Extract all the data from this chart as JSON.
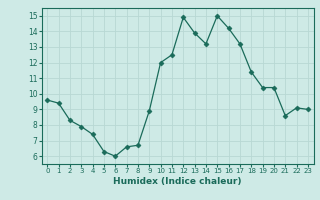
{
  "x": [
    0,
    1,
    2,
    3,
    4,
    5,
    6,
    7,
    8,
    9,
    10,
    11,
    12,
    13,
    14,
    15,
    16,
    17,
    18,
    19,
    20,
    21,
    22,
    23
  ],
  "y": [
    9.6,
    9.4,
    8.3,
    7.9,
    7.4,
    6.3,
    6.0,
    6.6,
    6.7,
    8.9,
    12.0,
    12.5,
    14.9,
    13.9,
    13.2,
    15.0,
    14.2,
    13.2,
    11.4,
    10.4,
    10.4,
    8.6,
    9.1,
    9.0
  ],
  "line_color": "#1a6b5a",
  "marker": "D",
  "marker_size": 2.5,
  "bg_color": "#ceeae6",
  "grid_color": "#b8d8d4",
  "tick_color": "#1a6b5a",
  "xlabel": "Humidex (Indice chaleur)",
  "xlim": [
    -0.5,
    23.5
  ],
  "ylim": [
    5.5,
    15.5
  ],
  "yticks": [
    6,
    7,
    8,
    9,
    10,
    11,
    12,
    13,
    14,
    15
  ],
  "xticks": [
    0,
    1,
    2,
    3,
    4,
    5,
    6,
    7,
    8,
    9,
    10,
    11,
    12,
    13,
    14,
    15,
    16,
    17,
    18,
    19,
    20,
    21,
    22,
    23
  ]
}
